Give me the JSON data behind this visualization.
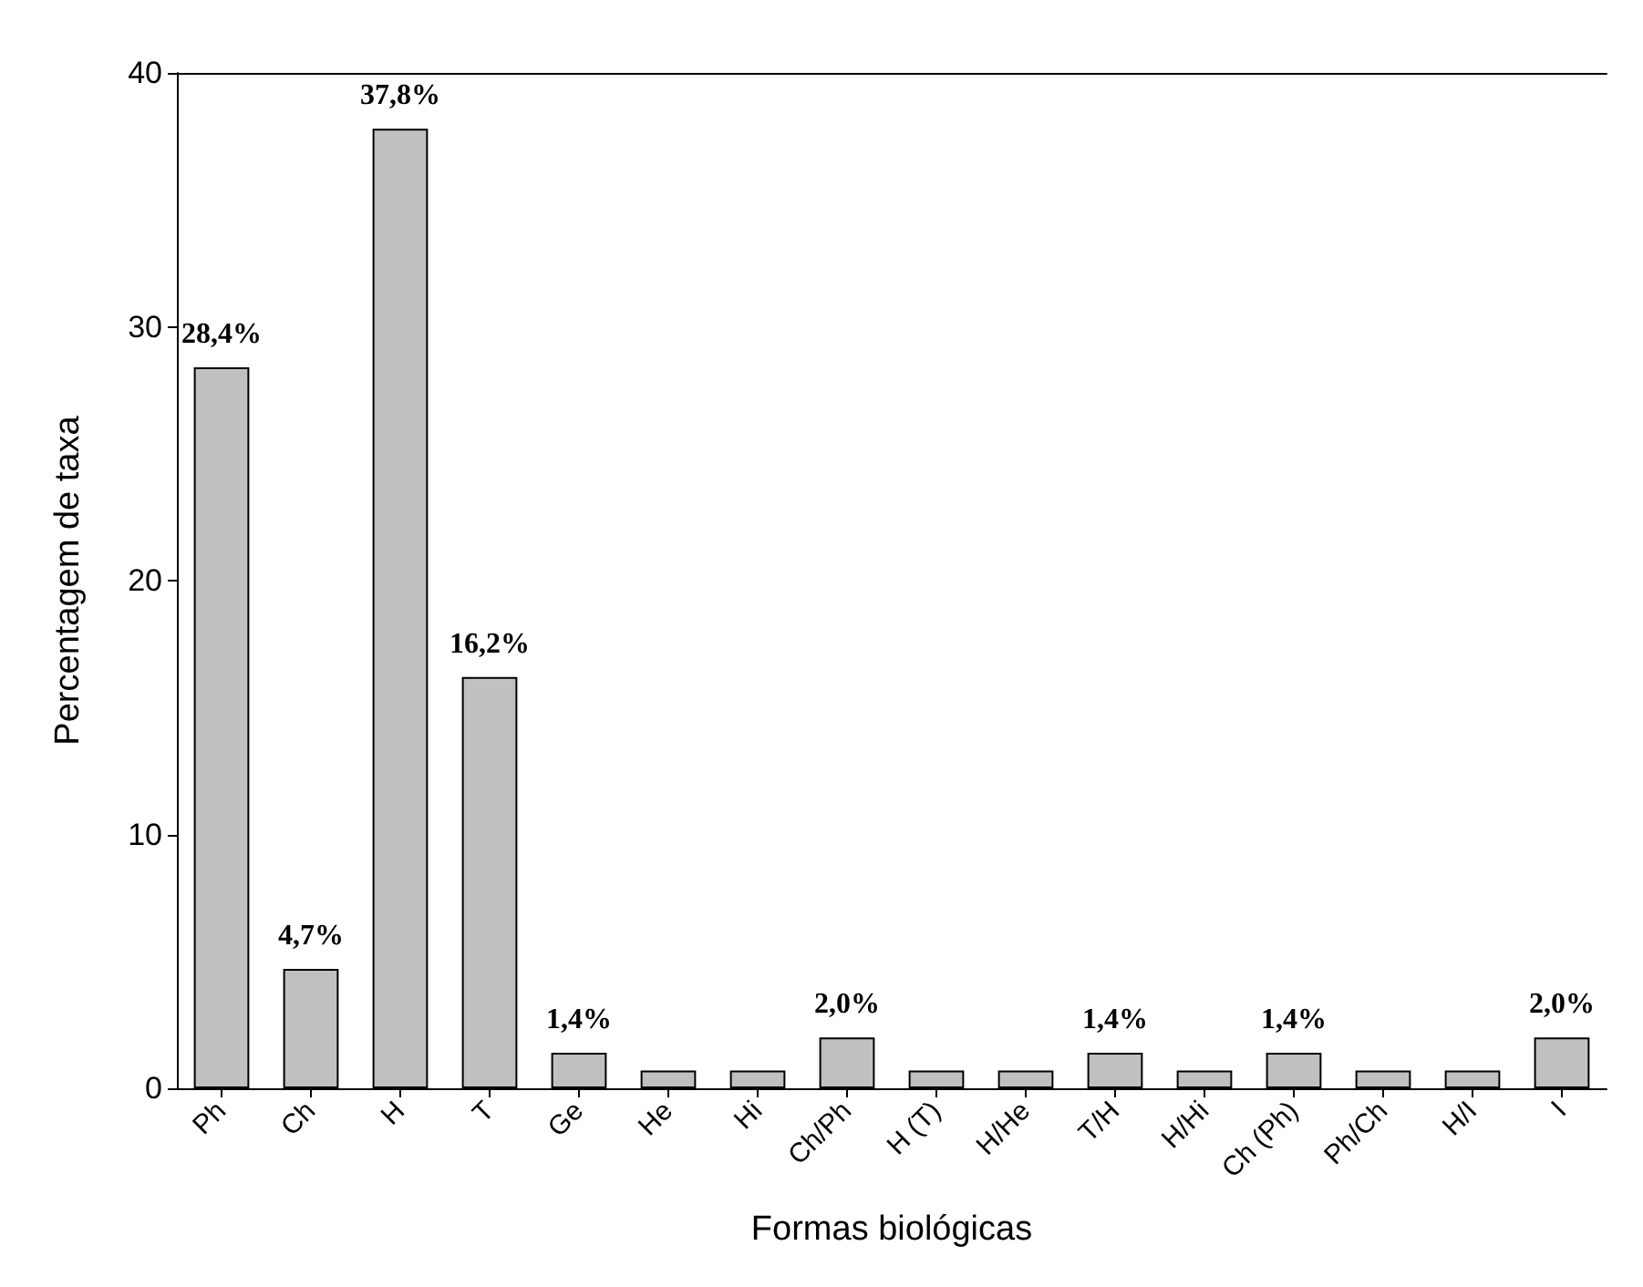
{
  "chart_data": {
    "type": "bar",
    "xlabel": "Formas biológicas",
    "ylabel": "Percentagem de taxa",
    "categories": [
      "Ph",
      "Ch",
      "H",
      "T",
      "Ge",
      "He",
      "Hi",
      "Ch/Ph",
      "H (T)",
      "H/He",
      "T/H",
      "H/Hi",
      "Ch (Ph)",
      "Ph/Ch",
      "H/I",
      "I"
    ],
    "values": [
      28.4,
      4.7,
      37.8,
      16.2,
      1.4,
      0.7,
      0.7,
      2.0,
      0.7,
      0.7,
      1.4,
      0.7,
      1.4,
      0.7,
      0.7,
      2.0
    ],
    "value_labels": [
      "28,4%",
      "4,7%",
      "37,8%",
      "16,2%",
      "1,4%",
      null,
      null,
      "2,0%",
      null,
      null,
      "1,4%",
      null,
      "1,4%",
      null,
      null,
      "2,0%"
    ],
    "color": "#c0c0c0",
    "ylim": [
      0,
      40
    ],
    "yticks": [
      0,
      10,
      20,
      30,
      40
    ],
    "grid": false
  }
}
